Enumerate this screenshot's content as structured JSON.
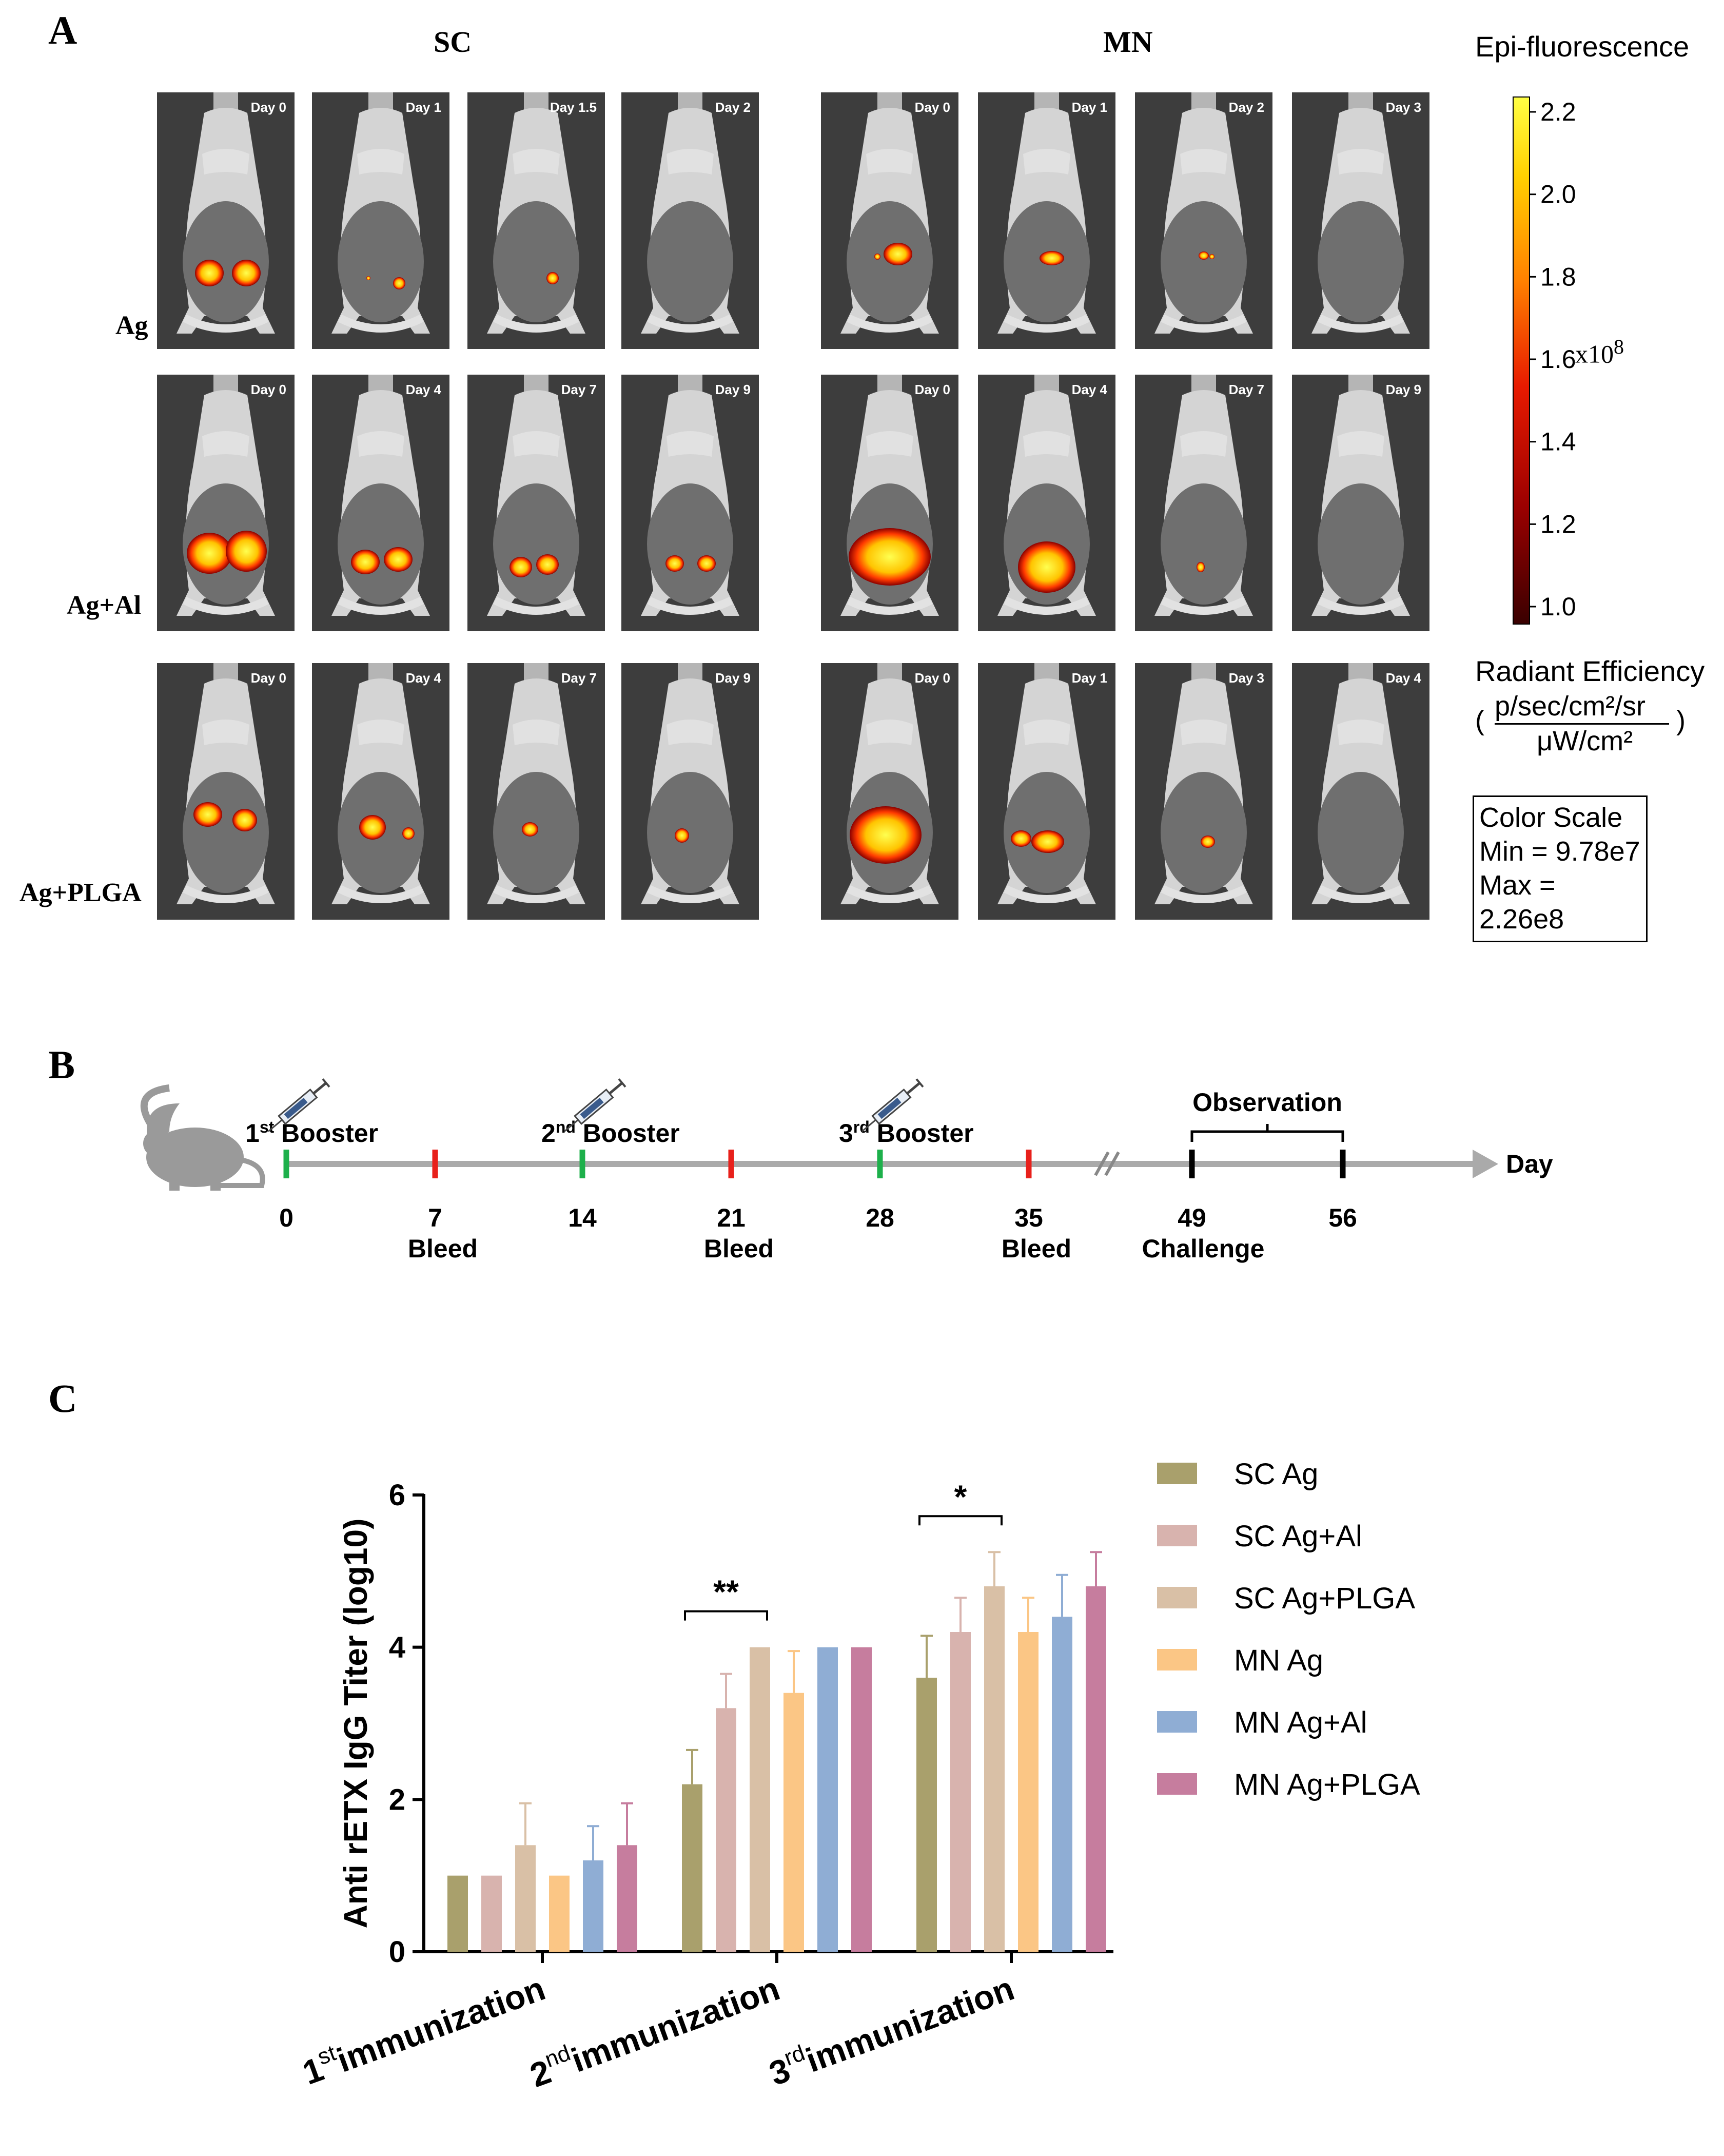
{
  "panel_a": {
    "letter": "A",
    "group_sc": "SC",
    "group_mn": "MN",
    "rows": [
      {
        "label": "Ag",
        "sc_days": [
          "Day 0",
          "Day 1",
          "Day 1.5",
          "Day 2"
        ],
        "mn_days": [
          "Day 0",
          "Day 1",
          "Day 2",
          "Day 3"
        ]
      },
      {
        "label": "Ag+Al",
        "sc_days": [
          "Day 0",
          "Day 4",
          "Day 7",
          "Day 9"
        ],
        "mn_days": [
          "Day 0",
          "Day 4",
          "Day 7",
          "Day 9"
        ]
      },
      {
        "label": "Ag+PLGA",
        "sc_days": [
          "Day 0",
          "Day 4",
          "Day 7",
          "Day 9"
        ],
        "mn_days": [
          "Day 0",
          "Day 1",
          "Day 3",
          "Day 4"
        ]
      }
    ],
    "colorbar": {
      "title": "Epi-fluorescence",
      "ticks": [
        "2.2",
        "2.0",
        "1.8",
        "1.6",
        "1.4",
        "1.2",
        "1.0"
      ],
      "multiplier": "x10",
      "multiplier_exp": "8",
      "unit_title": "Radiant Efficiency",
      "unit_num": "p/sec/cm²/sr",
      "unit_den": "μW/cm²",
      "scale_title": "Color Scale",
      "scale_min": "Min = 9.78e7",
      "scale_max": "Max = 2.26e8"
    }
  },
  "panel_b": {
    "letter": "B",
    "boosters": [
      {
        "ord": "1",
        "sup": "st",
        "text": "Booster",
        "day": 0
      },
      {
        "ord": "2",
        "sup": "nd",
        "text": "Booster",
        "day": 14
      },
      {
        "ord": "3",
        "sup": "rd",
        "text": "Booster",
        "day": 28
      }
    ],
    "bleeds": [
      {
        "label": "Bleed",
        "day": 7
      },
      {
        "label": "Bleed",
        "day": 21
      },
      {
        "label": "Bleed",
        "day": 35
      }
    ],
    "day_ticks": [
      "0",
      "7",
      "14",
      "21",
      "28",
      "35",
      "49",
      "56"
    ],
    "challenge": "Challenge",
    "observation": "Observation",
    "axis_label": "Day"
  },
  "panel_c": {
    "letter": "C"
  },
  "chart_data": {
    "type": "bar",
    "ylabel": "Anti rETX IgG Titer (log10)",
    "ylim": [
      0,
      6
    ],
    "yticks": [
      0,
      2,
      4,
      6
    ],
    "categories": [
      {
        "pre": "1",
        "sup": "st",
        "post": "immunization"
      },
      {
        "pre": "2",
        "sup": "nd",
        "post": "immunization"
      },
      {
        "pre": "3",
        "sup": "rd",
        "post": "immunization"
      }
    ],
    "series": [
      {
        "name": "SC Ag",
        "color": "#a9a06c",
        "values": [
          1.0,
          2.2,
          3.6
        ],
        "errors": [
          0,
          0.45,
          0.55
        ]
      },
      {
        "name": "SC Ag+Al",
        "color": "#d8b3ae",
        "values": [
          1.0,
          3.2,
          4.2
        ],
        "errors": [
          0,
          0.45,
          0.45
        ]
      },
      {
        "name": "SC Ag+PLGA",
        "color": "#d9c0a6",
        "values": [
          1.4,
          4.0,
          4.8
        ],
        "errors": [
          0.55,
          0,
          0.45
        ]
      },
      {
        "name": "MN Ag",
        "color": "#fbc685",
        "values": [
          1.0,
          3.4,
          4.2
        ],
        "errors": [
          0,
          0.55,
          0.45
        ]
      },
      {
        "name": "MN Ag+Al",
        "color": "#8fadd4",
        "values": [
          1.2,
          4.0,
          4.4
        ],
        "errors": [
          0.45,
          0,
          0.55
        ]
      },
      {
        "name": "MN Ag+PLGA",
        "color": "#c67d9e",
        "values": [
          1.4,
          4.0,
          4.8
        ],
        "errors": [
          0.55,
          0,
          0.45
        ]
      }
    ],
    "annotations": [
      {
        "text": "**",
        "group": 1,
        "from_series": 0,
        "to_series": 2
      },
      {
        "text": "*",
        "group": 2,
        "from_series": 0,
        "to_series": 2
      }
    ],
    "legend": "right"
  }
}
